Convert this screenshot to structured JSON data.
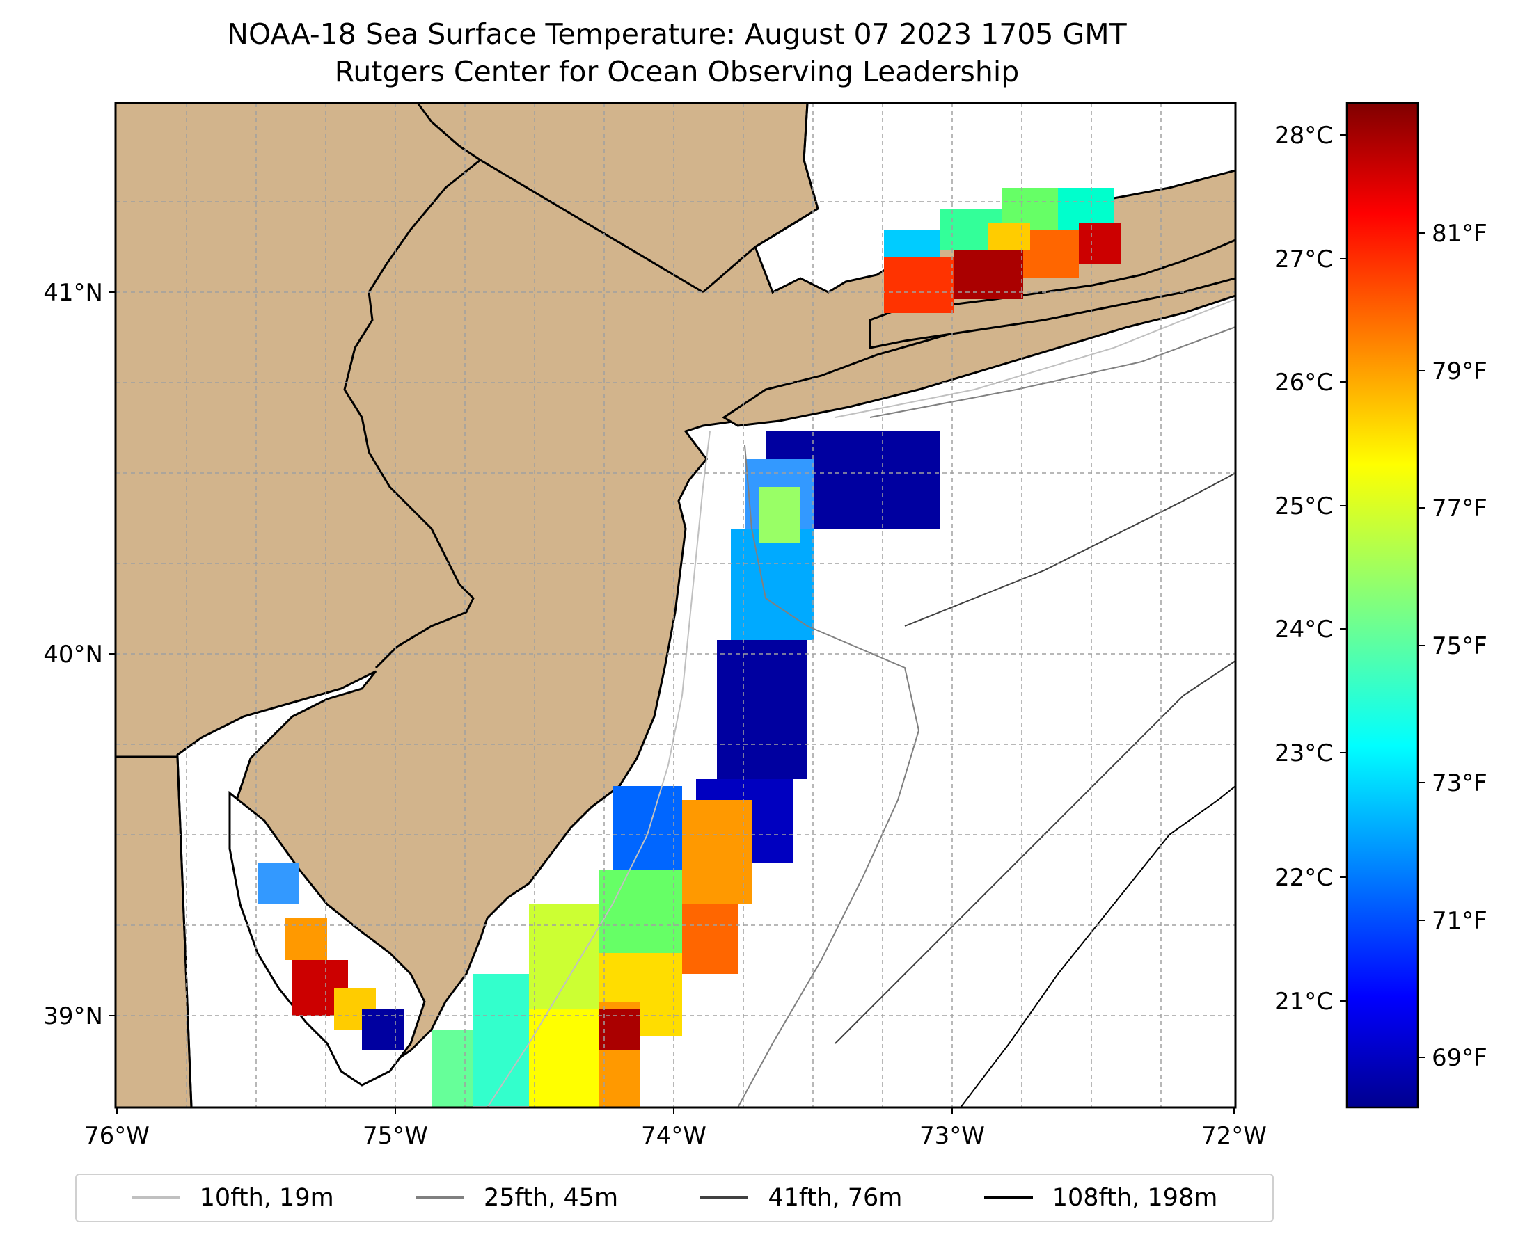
{
  "title": {
    "line1": "NOAA-18 Sea Surface Temperature: August 07 2023 1705 GMT",
    "line2": "Rutgers Center for Ocean Observing Leadership"
  },
  "colors": {
    "land": "#d2b48c",
    "ocean": "#ffffff",
    "grid": "#a0a0a0",
    "coast": "#000000"
  },
  "map": {
    "lon_range": [
      -76,
      -72
    ],
    "lat_range": [
      38.73,
      41.52
    ],
    "x_ticks": [
      {
        "value": -76,
        "label": "76°W"
      },
      {
        "value": -75,
        "label": "75°W"
      },
      {
        "value": -74,
        "label": "74°W"
      },
      {
        "value": -73,
        "label": "73°W"
      },
      {
        "value": -72,
        "label": "72°W"
      }
    ],
    "y_ticks": [
      {
        "value": 39,
        "label": "39°N"
      },
      {
        "value": 40,
        "label": "40°N"
      },
      {
        "value": 41,
        "label": "41°N"
      }
    ]
  },
  "colorbar": {
    "colormap": "jet",
    "celsius_ticks": [
      {
        "value": 21,
        "label": "21°C"
      },
      {
        "value": 22,
        "label": "22°C"
      },
      {
        "value": 23,
        "label": "23°C"
      },
      {
        "value": 24,
        "label": "24°C"
      },
      {
        "value": 25,
        "label": "25°C"
      },
      {
        "value": 26,
        "label": "26°C"
      },
      {
        "value": 27,
        "label": "27°C"
      },
      {
        "value": 28,
        "label": "28°C"
      }
    ],
    "fahrenheit_ticks": [
      {
        "value": 69,
        "label": "69°F"
      },
      {
        "value": 71,
        "label": "71°F"
      },
      {
        "value": 73,
        "label": "73°F"
      },
      {
        "value": 75,
        "label": "75°F"
      },
      {
        "value": 77,
        "label": "77°F"
      },
      {
        "value": 79,
        "label": "79°F"
      },
      {
        "value": 81,
        "label": "81°F"
      }
    ],
    "range_f": [
      68.2,
      82.9
    ]
  },
  "legend": [
    {
      "label": "10fth, 19m",
      "color": "#c0c0c0"
    },
    {
      "label": "25fth, 45m",
      "color": "#808080"
    },
    {
      "label": "41fth, 76m",
      "color": "#404040"
    },
    {
      "label": "108fth, 198m",
      "color": "#000000"
    }
  ]
}
